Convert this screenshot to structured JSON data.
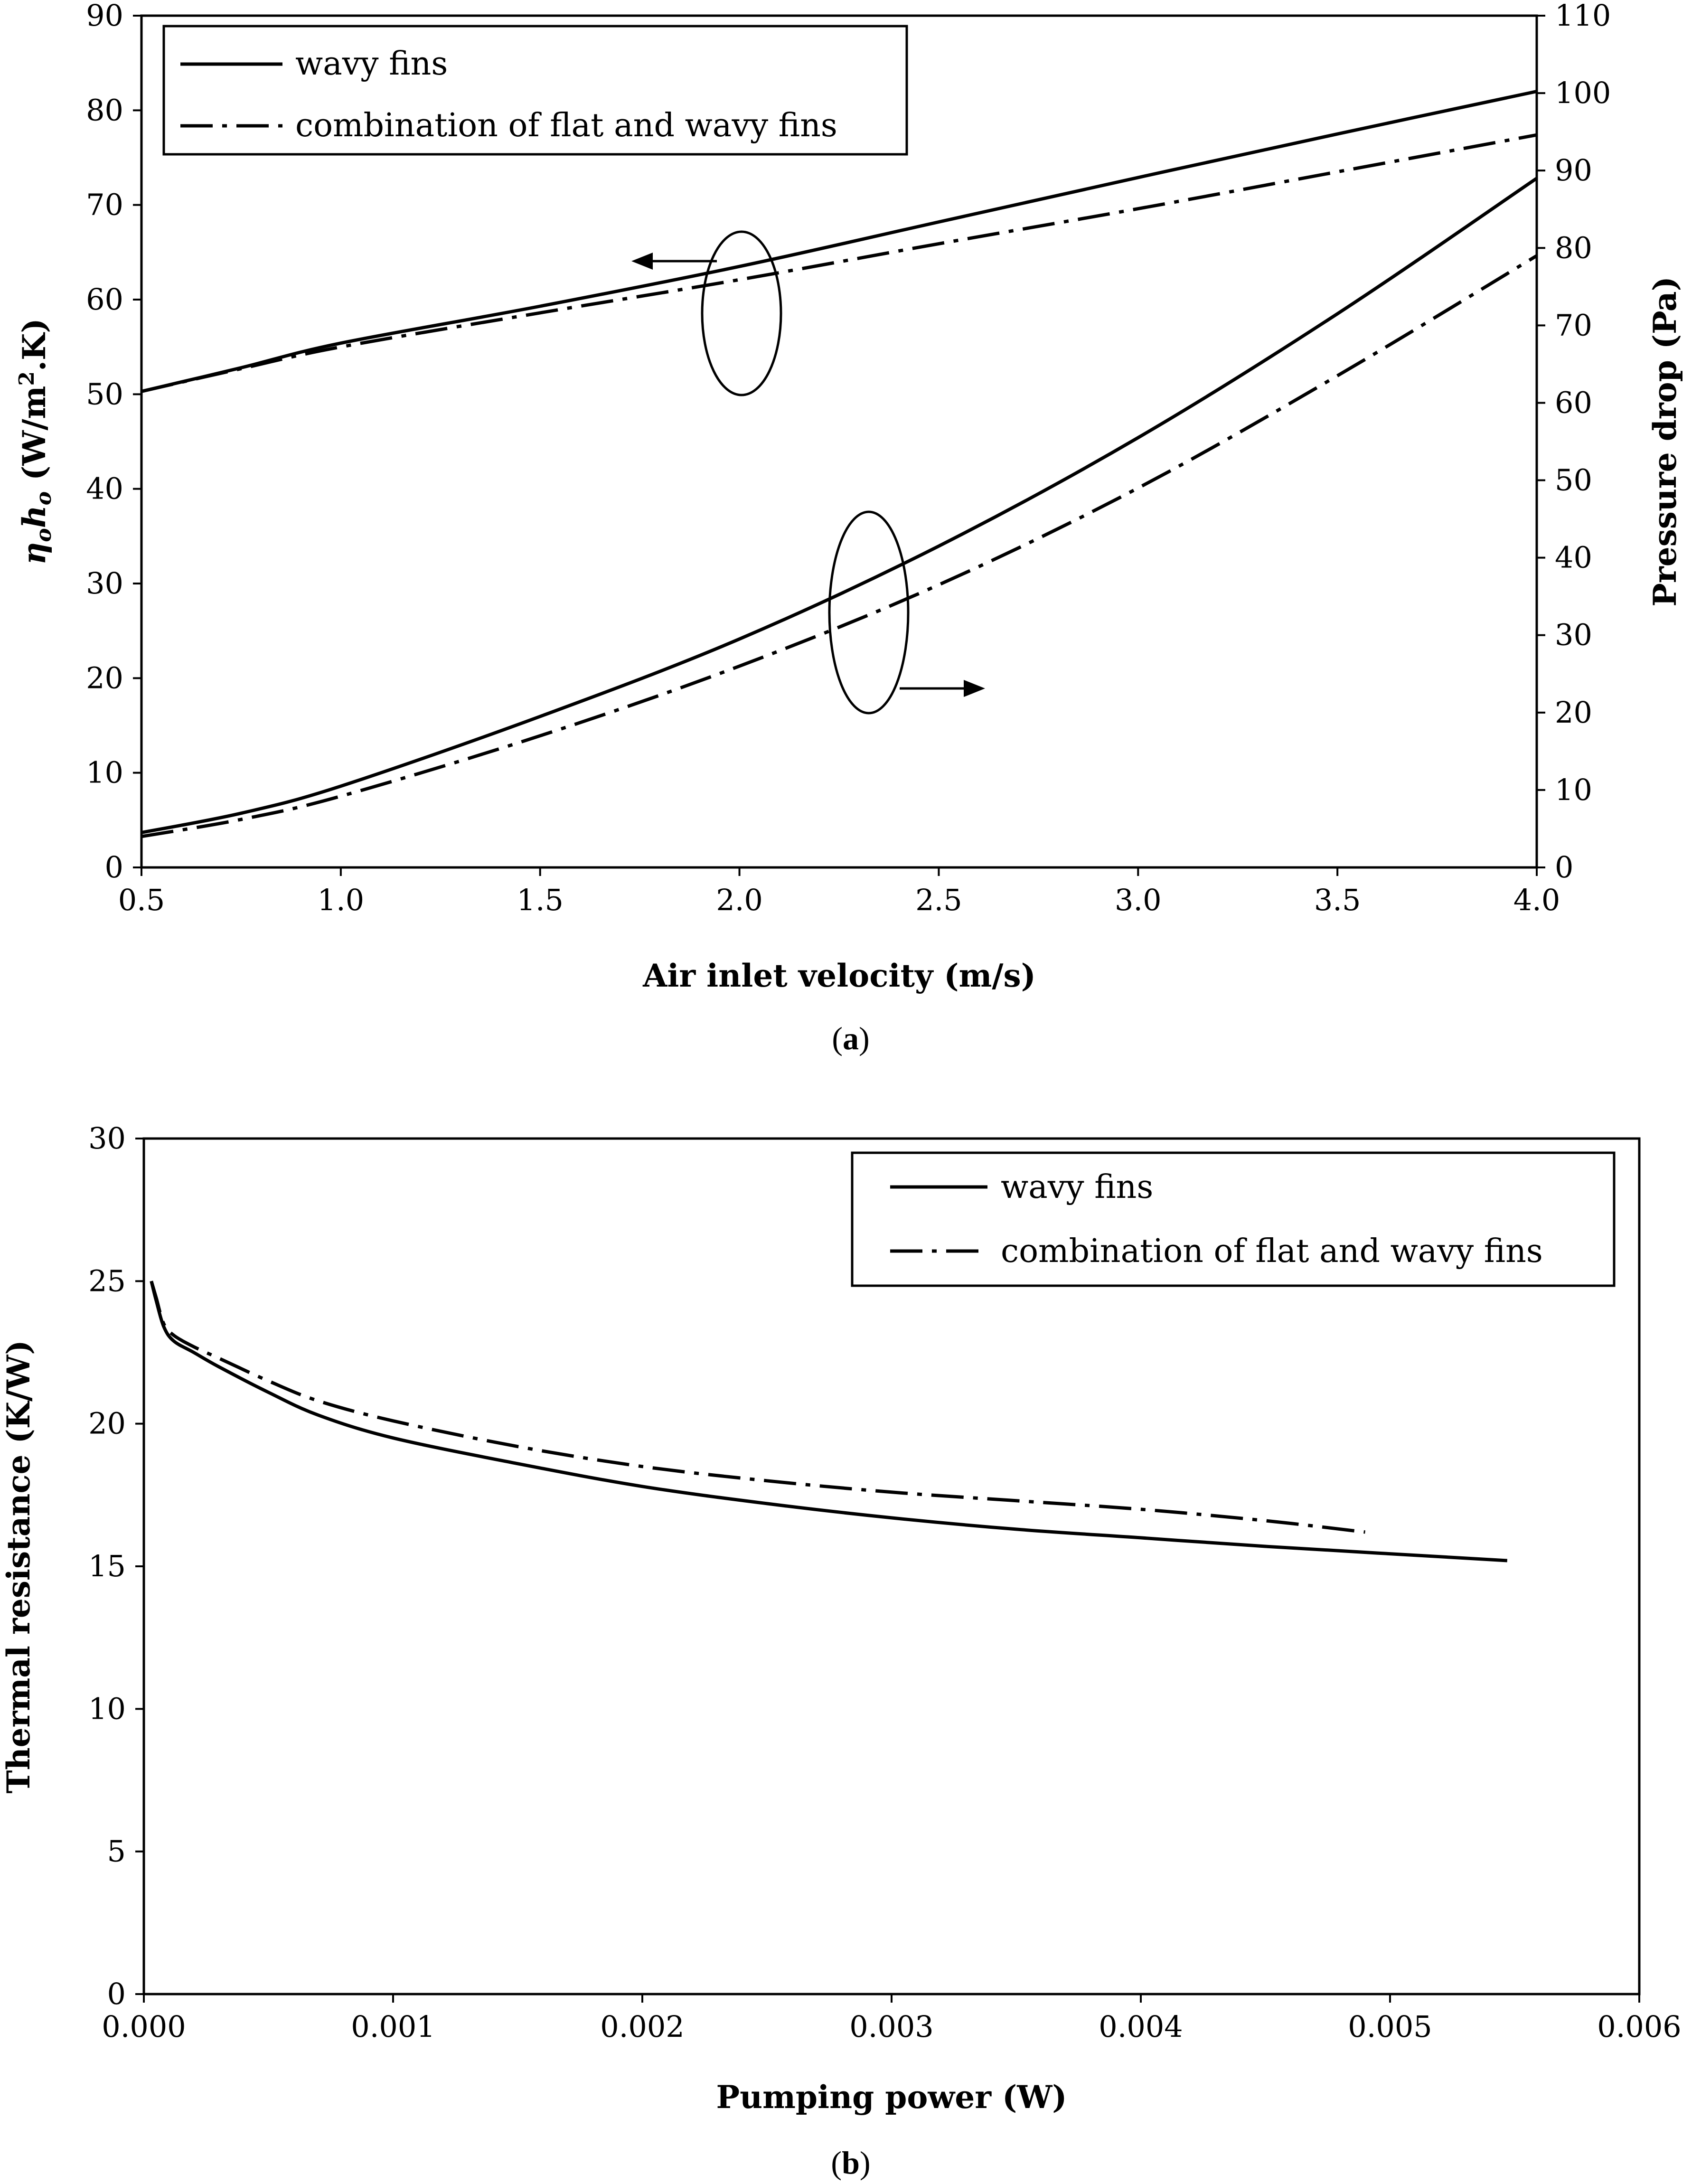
{
  "chart_data": [
    {
      "type": "line",
      "caption_open": "(",
      "caption_letter": "a",
      "caption_close": ")",
      "xlabel": "Air inlet velocity (m/s)",
      "ylabel": "ηohₒ (W/m².K)",
      "ylabel_parts": {
        "eta": "η",
        "sub1": "o",
        "h": "h",
        "sub2": "o",
        "rest_a": " (W/m",
        "sup": "2",
        "rest_b": ".K)"
      },
      "y2label": "Pressure drop (Pa)",
      "xlim": [
        0.5,
        4.0
      ],
      "ylim": [
        0,
        90
      ],
      "y2lim": [
        0,
        110
      ],
      "xticks": [
        "0.5",
        "1.0",
        "1.5",
        "2.0",
        "2.5",
        "3.0",
        "3.5",
        "4.0"
      ],
      "yticks": [
        "0",
        "10",
        "20",
        "30",
        "40",
        "50",
        "60",
        "70",
        "80",
        "90"
      ],
      "y2ticks": [
        "0",
        "10",
        "20",
        "30",
        "40",
        "50",
        "60",
        "70",
        "80",
        "90",
        "100",
        "110"
      ],
      "legend_position": "top-left",
      "grid": false,
      "series": [
        {
          "name": "wavy fins",
          "style": "solid",
          "axis": "left",
          "x": [
            0.5,
            0.75,
            1.0,
            1.5,
            2.0,
            2.5,
            3.0,
            3.5,
            4.0
          ],
          "values": [
            50.3,
            52.8,
            55.4,
            59.3,
            63.5,
            68.2,
            72.9,
            77.5,
            82.0
          ]
        },
        {
          "name": "combination of flat and wavy fins",
          "style": "dashdot",
          "axis": "left",
          "x": [
            0.5,
            0.75,
            1.0,
            1.5,
            2.0,
            2.5,
            3.0,
            3.5,
            4.0
          ],
          "values": [
            50.3,
            52.7,
            55.0,
            58.6,
            62.1,
            65.9,
            69.6,
            73.5,
            77.4
          ]
        },
        {
          "name": "wavy fins",
          "style": "solid",
          "axis": "right",
          "x": [
            0.5,
            0.75,
            1.0,
            1.5,
            2.0,
            2.5,
            3.0,
            3.5,
            4.0
          ],
          "values": [
            4.5,
            7.0,
            10.5,
            19.5,
            29.5,
            41.5,
            55.5,
            71.5,
            89.0
          ]
        },
        {
          "name": "combination of flat and wavy fins",
          "style": "dashdot",
          "axis": "right",
          "x": [
            0.5,
            0.75,
            1.0,
            1.5,
            2.0,
            2.5,
            3.0,
            3.5,
            4.0
          ],
          "values": [
            4.0,
            6.2,
            9.2,
            17.0,
            26.0,
            36.5,
            49.0,
            63.5,
            79.0
          ]
        }
      ],
      "annotations": [
        "ellipse with arrow pointing left (left-axis curves)",
        "ellipse with arrow pointing right (right-axis curves)"
      ]
    },
    {
      "type": "line",
      "caption_open": "(",
      "caption_letter": "b",
      "caption_close": ")",
      "xlabel": "Pumping power (W)",
      "ylabel": "Thermal resistance (K/W)",
      "xlim": [
        0,
        0.006
      ],
      "ylim": [
        0,
        30
      ],
      "xticks": [
        "0.000",
        "0.001",
        "0.002",
        "0.003",
        "0.004",
        "0.005",
        "0.006"
      ],
      "yticks": [
        "0",
        "5",
        "10",
        "15",
        "20",
        "25",
        "30"
      ],
      "legend_position": "top-right",
      "grid": false,
      "series": [
        {
          "name": "wavy fins",
          "style": "solid",
          "x": [
            3e-05,
            5e-05,
            8e-05,
            0.00012,
            0.0002,
            0.0003,
            0.0005,
            0.0007,
            0.001,
            0.0015,
            0.002,
            0.0025,
            0.003,
            0.0035,
            0.004,
            0.0045,
            0.00547
          ],
          "values": [
            25.0,
            24.3,
            23.4,
            22.9,
            22.5,
            22.0,
            21.1,
            20.3,
            19.5,
            18.6,
            17.8,
            17.2,
            16.7,
            16.3,
            16.0,
            15.7,
            15.2
          ]
        },
        {
          "name": "combination of flat and wavy fins",
          "style": "dashdot",
          "x": [
            3e-05,
            5e-05,
            8e-05,
            0.00012,
            0.0002,
            0.0003,
            0.0005,
            0.0007,
            0.001,
            0.0015,
            0.002,
            0.0025,
            0.003,
            0.0035,
            0.004,
            0.0045,
            0.0049
          ],
          "values": [
            25.0,
            24.4,
            23.5,
            23.1,
            22.7,
            22.3,
            21.5,
            20.8,
            20.1,
            19.2,
            18.5,
            18.0,
            17.6,
            17.3,
            17.0,
            16.6,
            16.2
          ]
        }
      ]
    }
  ]
}
